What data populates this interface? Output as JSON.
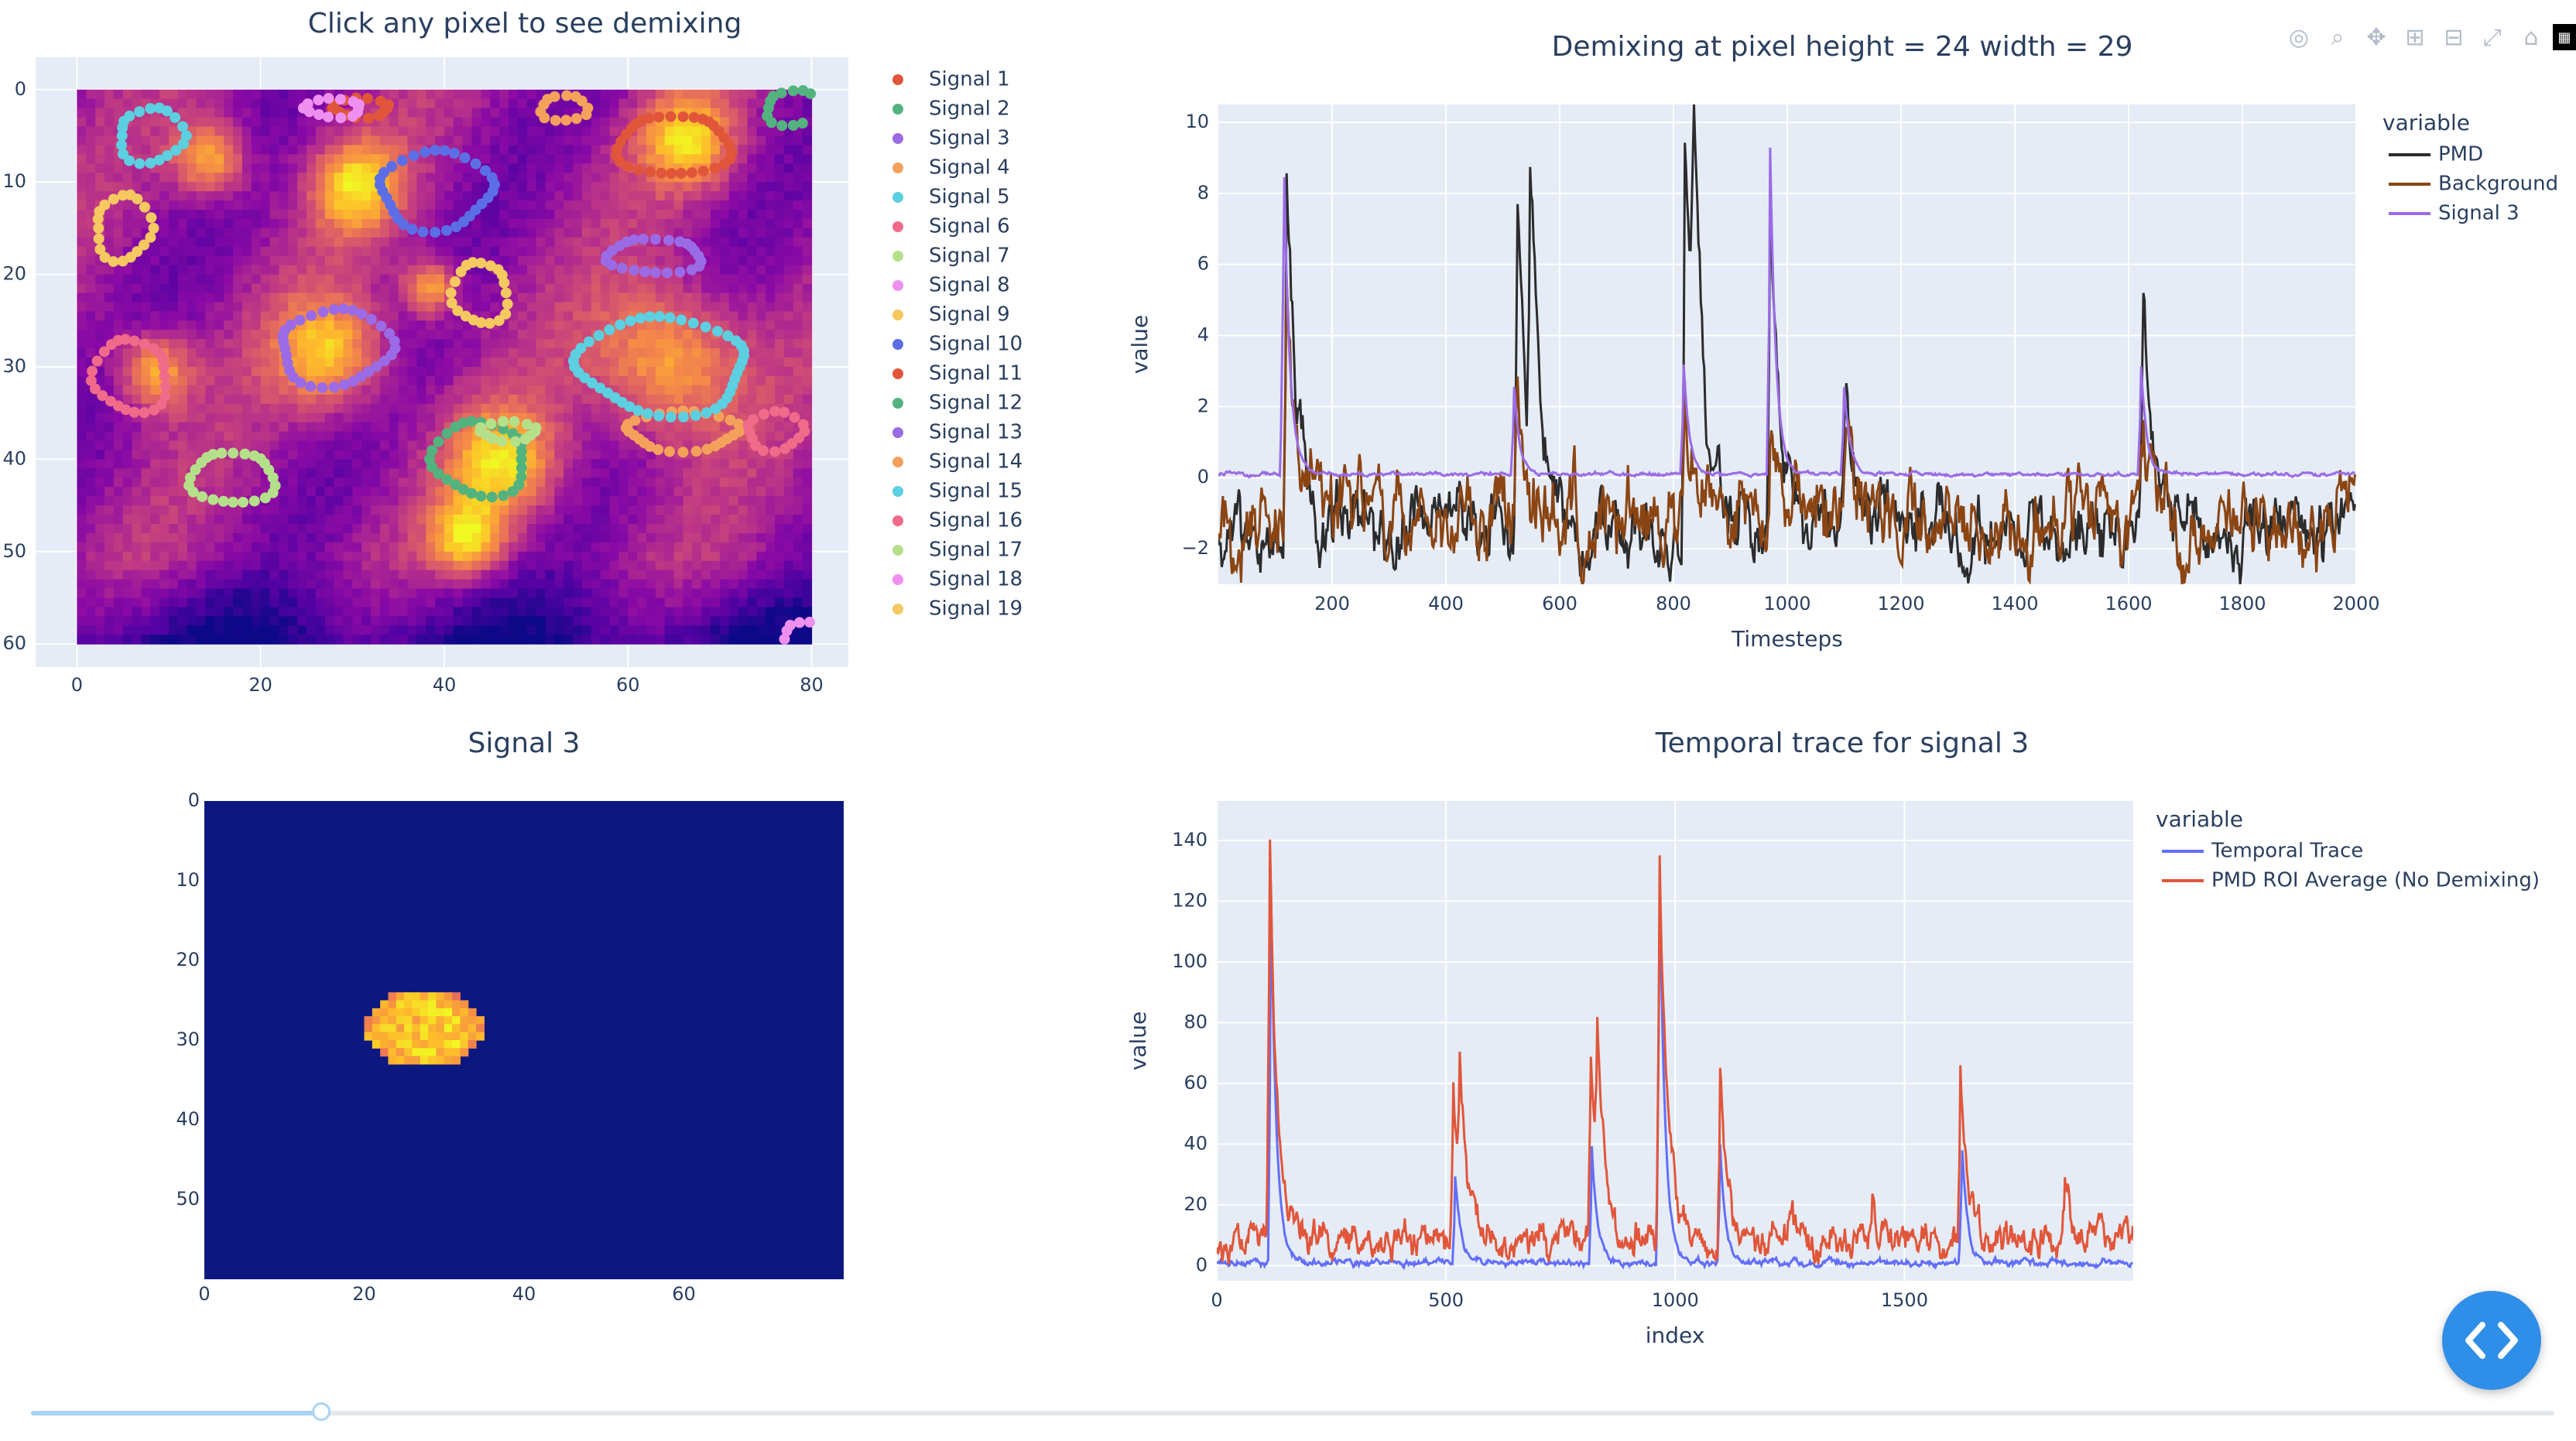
{
  "app": {
    "modebar": [
      "camera-icon",
      "zoom-icon",
      "pan-icon",
      "zoom-in-icon",
      "zoom-out-icon",
      "autoscale-icon",
      "reset-axes-icon",
      "plotly-logo-icon"
    ],
    "code_button_icon": "code-brackets-icon",
    "slider": {
      "value_fraction": 0.115
    }
  },
  "colors": {
    "plot_bg": "#e5ecf6",
    "pmd": "#2c2c2c",
    "background": "#8b4513",
    "signal3": "#9b6be6",
    "temporal": "#636efa",
    "roi_avg": "#e1563a",
    "heat_bg": "#0d1780"
  },
  "chart_data": [
    {
      "type": "heatmap",
      "title": "Click any pixel to see demixing",
      "x_ticks": [
        0,
        20,
        40,
        60,
        80
      ],
      "y_ticks": [
        0,
        10,
        20,
        30,
        40,
        50,
        60
      ],
      "xlim": [
        -4.5,
        84
      ],
      "ylim": [
        62.5,
        -3.5
      ],
      "image_extent": {
        "x": [
          0,
          80
        ],
        "y": [
          0,
          60
        ]
      },
      "hotspots": [
        {
          "x": 30,
          "y": 10,
          "r": 5
        },
        {
          "x": 27,
          "y": 28,
          "r": 6
        },
        {
          "x": 64,
          "y": 29,
          "r": 8
        },
        {
          "x": 66,
          "y": 5,
          "r": 5
        },
        {
          "x": 8,
          "y": 30,
          "r": 4
        },
        {
          "x": 46,
          "y": 40,
          "r": 6
        },
        {
          "x": 38,
          "y": 21,
          "r": 3
        },
        {
          "x": 14,
          "y": 7,
          "r": 4
        },
        {
          "x": 42,
          "y": 48,
          "r": 4
        }
      ],
      "legend": [
        {
          "name": "Signal 1",
          "color": "#e1563a"
        },
        {
          "name": "Signal 2",
          "color": "#52b37e"
        },
        {
          "name": "Signal 3",
          "color": "#9b6be6"
        },
        {
          "name": "Signal 4",
          "color": "#f4a15b"
        },
        {
          "name": "Signal 5",
          "color": "#5ccfe0"
        },
        {
          "name": "Signal 6",
          "color": "#f06a8a"
        },
        {
          "name": "Signal 7",
          "color": "#b5e08a"
        },
        {
          "name": "Signal 8",
          "color": "#ef8ff0"
        },
        {
          "name": "Signal 9",
          "color": "#f5c860"
        },
        {
          "name": "Signal 10",
          "color": "#5b6ee6"
        },
        {
          "name": "Signal 11",
          "color": "#e1563a"
        },
        {
          "name": "Signal 12",
          "color": "#52b37e"
        },
        {
          "name": "Signal 13",
          "color": "#9b6be6"
        },
        {
          "name": "Signal 14",
          "color": "#f4a15b"
        },
        {
          "name": "Signal 15",
          "color": "#5ccfe0"
        },
        {
          "name": "Signal 16",
          "color": "#f06a8a"
        },
        {
          "name": "Signal 17",
          "color": "#b5e08a"
        },
        {
          "name": "Signal 18",
          "color": "#ef8ff0"
        },
        {
          "name": "Signal 19",
          "color": "#f5c860"
        }
      ],
      "contours": [
        {
          "signal": "Signal 1",
          "cx": 65,
          "cy": 6,
          "rx": 6,
          "ry": 3.5
        },
        {
          "signal": "Signal 2",
          "cx": 78,
          "cy": 2,
          "rx": 3,
          "ry": 2
        },
        {
          "signal": "Signal 3",
          "cx": 28,
          "cy": 28,
          "rx": 6,
          "ry": 4
        },
        {
          "signal": "Signal 4",
          "cx": 66,
          "cy": 37,
          "rx": 6,
          "ry": 2
        },
        {
          "signal": "Signal 5",
          "cx": 64,
          "cy": 30,
          "rx": 9,
          "ry": 5
        },
        {
          "signal": "Signal 6",
          "cx": 6,
          "cy": 31,
          "rx": 4,
          "ry": 4
        },
        {
          "signal": "Signal 7",
          "cx": 17,
          "cy": 42,
          "rx": 4.5,
          "ry": 3
        },
        {
          "signal": "Signal 8",
          "cx": 79,
          "cy": 59,
          "rx": 2,
          "ry": 1.5
        },
        {
          "signal": "Signal 9",
          "cx": 5,
          "cy": 15,
          "rx": 3,
          "ry": 3.5
        },
        {
          "signal": "Signal 10",
          "cx": 39,
          "cy": 11,
          "rx": 6,
          "ry": 4
        },
        {
          "signal": "Signal 11",
          "cx": 31,
          "cy": 2,
          "rx": 3,
          "ry": 1
        },
        {
          "signal": "Signal 12",
          "cx": 44,
          "cy": 40,
          "rx": 5,
          "ry": 4
        },
        {
          "signal": "Signal 13",
          "cx": 63,
          "cy": 18,
          "rx": 5,
          "ry": 2
        },
        {
          "signal": "Signal 14",
          "cx": 53,
          "cy": 2,
          "rx": 2.5,
          "ry": 1.5
        },
        {
          "signal": "Signal 15",
          "cx": 8,
          "cy": 5,
          "rx": 3.5,
          "ry": 3
        },
        {
          "signal": "Signal 16",
          "cx": 76,
          "cy": 37,
          "rx": 3,
          "ry": 2
        },
        {
          "signal": "Signal 17",
          "cx": 47,
          "cy": 37,
          "rx": 3,
          "ry": 1
        },
        {
          "signal": "Signal 18",
          "cx": 28,
          "cy": 2,
          "rx": 3,
          "ry": 1
        },
        {
          "signal": "Signal 19",
          "cx": 44,
          "cy": 22,
          "rx": 3,
          "ry": 3.5
        }
      ]
    },
    {
      "type": "line",
      "title": "Demixing at pixel height = 24 width = 29",
      "xlabel": "Timesteps",
      "ylabel": "value",
      "xlim": [
        0,
        2000
      ],
      "ylim": [
        -3,
        10.5
      ],
      "x_ticks": [
        200,
        400,
        600,
        800,
        1000,
        1200,
        1400,
        1600,
        1800,
        2000
      ],
      "y_ticks": [
        -2,
        0,
        2,
        4,
        6,
        8,
        10
      ],
      "legend_title": "variable",
      "legend_position": "right",
      "series": [
        {
          "name": "PMD",
          "color": "#2c2c2c",
          "base": -1.5,
          "noise": 0.7,
          "peaks": [
            [
              120,
              9.8
            ],
            [
              525,
              8.0
            ],
            [
              548,
              6.2
            ],
            [
              820,
              9.2
            ],
            [
              835,
              7.5
            ],
            [
              970,
              8.0
            ],
            [
              1102,
              2.2
            ],
            [
              1625,
              5.3
            ]
          ]
        },
        {
          "name": "Background",
          "color": "#8b4513",
          "base": -1.2,
          "noise": 0.8,
          "peaks": [
            [
              120,
              6.5
            ],
            [
              525,
              3.0
            ],
            [
              820,
              2.5
            ],
            [
              970,
              2.0
            ],
            [
              1102,
              1.5
            ],
            [
              1625,
              2.0
            ]
          ]
        },
        {
          "name": "Signal 3",
          "color": "#9b6be6",
          "base": 0.1,
          "noise": 0.04,
          "peaks": [
            [
              115,
              9.3
            ],
            [
              520,
              2.6
            ],
            [
              818,
              3.2
            ],
            [
              970,
              9.3
            ],
            [
              1100,
              2.6
            ],
            [
              1622,
              3.1
            ]
          ]
        }
      ]
    },
    {
      "type": "heatmap",
      "title": "Signal 3",
      "x_ticks": [
        0,
        20,
        40,
        60
      ],
      "y_ticks": [
        0,
        10,
        20,
        30,
        40,
        50
      ],
      "xlim": [
        0,
        80
      ],
      "ylim": [
        60,
        0
      ],
      "blob": {
        "cx": 27,
        "cy": 28,
        "rx": 7,
        "ry": 4.5
      }
    },
    {
      "type": "line",
      "title": "Temporal trace for signal 3",
      "xlabel": "index",
      "ylabel": "value",
      "xlim": [
        0,
        1999
      ],
      "ylim": [
        -5,
        153
      ],
      "x_ticks": [
        0,
        500,
        1000,
        1500
      ],
      "y_ticks": [
        0,
        20,
        40,
        60,
        80,
        100,
        120,
        140
      ],
      "legend_title": "variable",
      "legend_position": "right",
      "series": [
        {
          "name": "Temporal Trace",
          "color": "#636efa",
          "base": 1,
          "noise": 0.8,
          "peaks": [
            [
              118,
              126
            ],
            [
              520,
              30
            ],
            [
              818,
              40
            ],
            [
              965,
              140
            ],
            [
              1098,
              40
            ],
            [
              1625,
              42
            ]
          ]
        },
        {
          "name": "PMD ROI Average (No Demixing)",
          "color": "#e1563a",
          "base": 8,
          "noise": 4,
          "peaks": [
            [
              115,
              147
            ],
            [
              515,
              65
            ],
            [
              530,
              48
            ],
            [
              815,
              72
            ],
            [
              830,
              60
            ],
            [
              965,
              147
            ],
            [
              1098,
              71
            ],
            [
              1250,
              17
            ],
            [
              1430,
              22
            ],
            [
              1622,
              62
            ],
            [
              1850,
              28
            ]
          ]
        }
      ]
    }
  ]
}
